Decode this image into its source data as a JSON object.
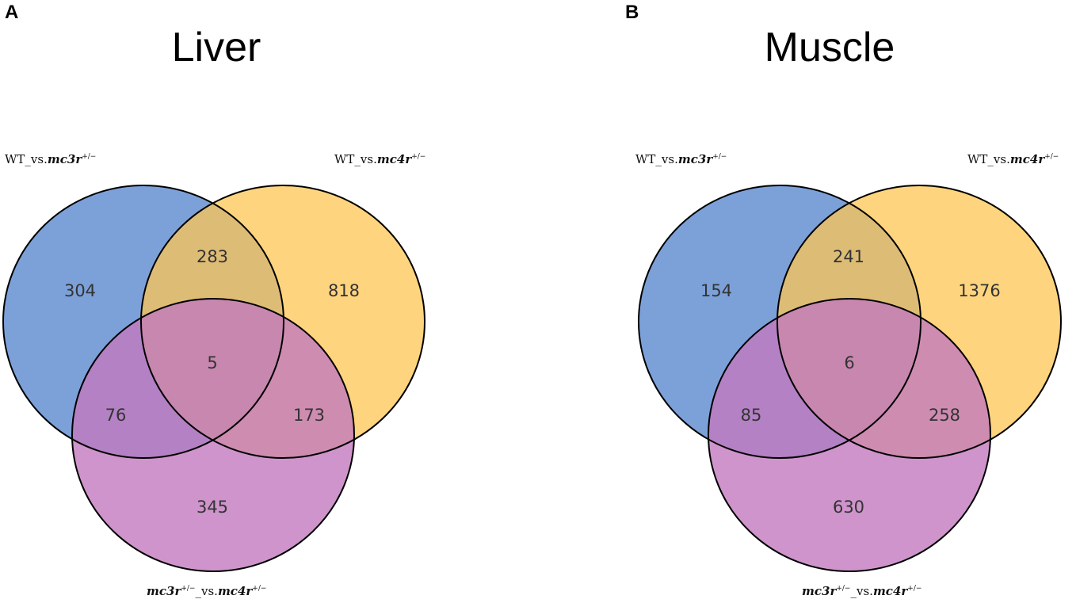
{
  "colors": {
    "set_a": "#5b8ad0",
    "set_b": "#fdc654",
    "set_c": "#c279be",
    "outline": "#000000",
    "count_text": "#333333"
  },
  "panels": [
    {
      "letter": "A",
      "title": "Liver",
      "sets": [
        {
          "prefix": "WT_vs.",
          "gene": "mc3r",
          "sup": "+/−",
          "gene2": "",
          "sup2": ""
        },
        {
          "prefix": "WT_vs.",
          "gene": "mc4r",
          "sup": "+/−",
          "gene2": "",
          "sup2": ""
        },
        {
          "prefix": "",
          "gene": "mc3r",
          "sup": "+/−",
          "mid": "_vs.",
          "gene2": "mc4r",
          "sup2": "+/−"
        }
      ],
      "counts": {
        "only_a": "304",
        "only_b": "818",
        "only_c": "345",
        "ab": "283",
        "ac": "76",
        "bc": "173",
        "abc": "5"
      }
    },
    {
      "letter": "B",
      "title": "Muscle",
      "sets": [
        {
          "prefix": "WT_vs.",
          "gene": "mc3r",
          "sup": "+/−",
          "gene2": "",
          "sup2": ""
        },
        {
          "prefix": "WT_vs.",
          "gene": "mc4r",
          "sup": "+/−",
          "gene2": "",
          "sup2": ""
        },
        {
          "prefix": "",
          "gene": "mc3r",
          "sup": "+/−",
          "mid": "_vs.",
          "gene2": "mc4r",
          "sup2": "+/−"
        }
      ],
      "counts": {
        "only_a": "154",
        "only_b": "1376",
        "only_c": "630",
        "ab": "241",
        "ac": "85",
        "bc": "258",
        "abc": "6"
      }
    }
  ]
}
